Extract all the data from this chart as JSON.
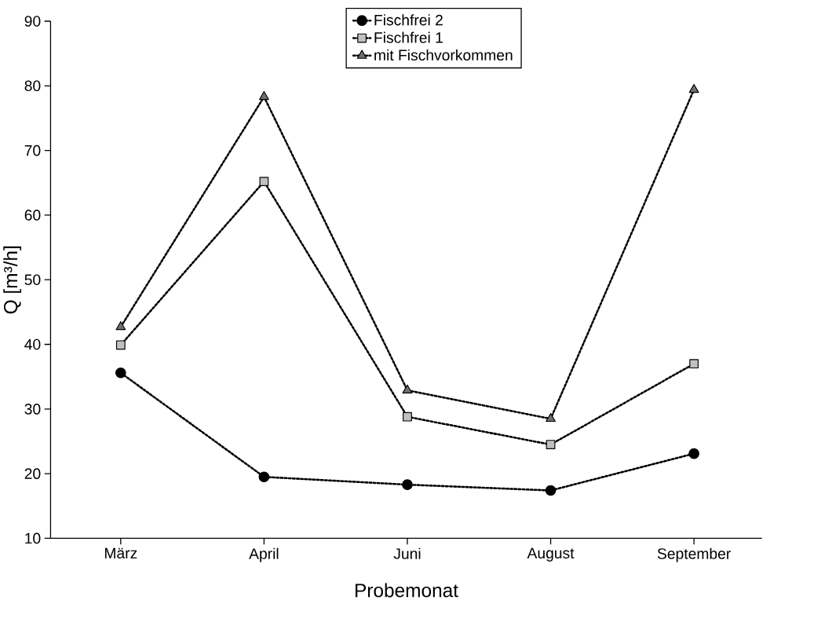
{
  "chart_data": {
    "type": "line",
    "xlabel": "Probemonat",
    "ylabel": "Q [m³/h]",
    "categories": [
      "März",
      "April",
      "Juni",
      "August",
      "September"
    ],
    "series": [
      {
        "name": "Fischfrei 2",
        "color": "#000000",
        "marker": "circle",
        "values": [
          35.6,
          19.5,
          18.3,
          17.4,
          23.1
        ]
      },
      {
        "name": "Fischfrei 1",
        "color": "#c0c0c0",
        "marker": "square",
        "values": [
          39.9,
          65.2,
          28.8,
          24.5,
          37.0
        ]
      },
      {
        "name": "mit Fischvorkommen",
        "color": "#707070",
        "marker": "triangle",
        "values": [
          42.7,
          78.3,
          32.9,
          28.5,
          79.4
        ]
      }
    ],
    "ylim": [
      10,
      90
    ],
    "yticks": [
      10,
      20,
      30,
      40,
      50,
      60,
      70,
      80,
      90
    ],
    "line_style": "dotted",
    "legend": "top right",
    "grid": false
  }
}
